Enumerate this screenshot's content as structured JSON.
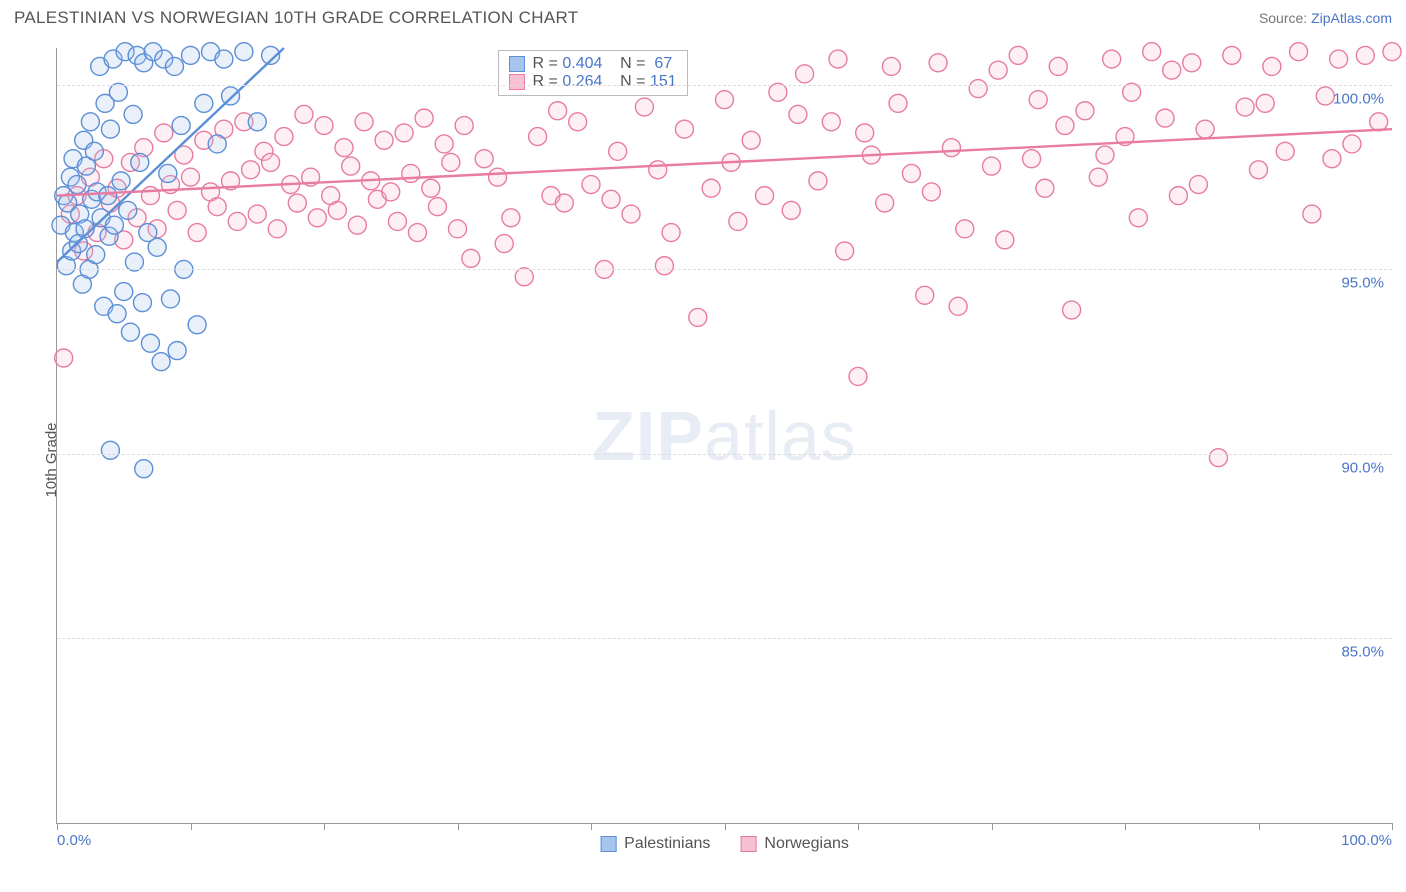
{
  "title": "PALESTINIAN VS NORWEGIAN 10TH GRADE CORRELATION CHART",
  "source_prefix": "Source: ",
  "source_link": "ZipAtlas.com",
  "y_axis_title": "10th Grade",
  "watermark_a": "ZIP",
  "watermark_b": "atlas",
  "chart": {
    "type": "scatter",
    "xlim": [
      0,
      100
    ],
    "ylim": [
      80,
      101
    ],
    "background_color": "#ffffff",
    "grid_color": "#dddddd",
    "axis_color": "#999999",
    "y_gridlines": [
      85,
      90,
      95,
      100
    ],
    "y_tick_labels": [
      "85.0%",
      "90.0%",
      "95.0%",
      "100.0%"
    ],
    "x_ticks": [
      0,
      10,
      20,
      30,
      40,
      50,
      60,
      70,
      80,
      90,
      100
    ],
    "x_tick_labels_shown": {
      "0": "0.0%",
      "100": "100.0%"
    },
    "marker_radius": 9,
    "marker_fill_opacity": 0.25,
    "marker_stroke_width": 1.4,
    "trendline_width": 2.4,
    "label_fontsize": 15,
    "label_color": "#4a76c7",
    "series": [
      {
        "key": "palestinians",
        "label": "Palestinians",
        "color_stroke": "#5b8fd6",
        "color_fill": "#a7c5ec",
        "R": "0.404",
        "N": "67",
        "trendline": {
          "x1": 0,
          "y1": 95.2,
          "x2": 17,
          "y2": 101.0
        },
        "points": [
          [
            0.3,
            96.2
          ],
          [
            0.5,
            97.0
          ],
          [
            0.7,
            95.1
          ],
          [
            0.8,
            96.8
          ],
          [
            1.0,
            97.5
          ],
          [
            1.1,
            95.5
          ],
          [
            1.2,
            98.0
          ],
          [
            1.3,
            96.0
          ],
          [
            1.5,
            97.3
          ],
          [
            1.6,
            95.7
          ],
          [
            1.7,
            96.5
          ],
          [
            1.9,
            94.6
          ],
          [
            2.0,
            98.5
          ],
          [
            2.1,
            96.1
          ],
          [
            2.2,
            97.8
          ],
          [
            2.4,
            95.0
          ],
          [
            2.5,
            99.0
          ],
          [
            2.6,
            96.9
          ],
          [
            2.8,
            98.2
          ],
          [
            2.9,
            95.4
          ],
          [
            3.0,
            97.1
          ],
          [
            3.2,
            100.5
          ],
          [
            3.3,
            96.4
          ],
          [
            3.5,
            94.0
          ],
          [
            3.6,
            99.5
          ],
          [
            3.8,
            97.0
          ],
          [
            3.9,
            95.9
          ],
          [
            4.0,
            98.8
          ],
          [
            4.2,
            100.7
          ],
          [
            4.3,
            96.2
          ],
          [
            4.5,
            93.8
          ],
          [
            4.6,
            99.8
          ],
          [
            4.8,
            97.4
          ],
          [
            5.0,
            94.4
          ],
          [
            5.1,
            100.9
          ],
          [
            5.3,
            96.6
          ],
          [
            5.5,
            93.3
          ],
          [
            5.7,
            99.2
          ],
          [
            5.8,
            95.2
          ],
          [
            6.0,
            100.8
          ],
          [
            6.2,
            97.9
          ],
          [
            6.4,
            94.1
          ],
          [
            6.5,
            100.6
          ],
          [
            6.8,
            96.0
          ],
          [
            7.0,
            93.0
          ],
          [
            7.2,
            100.9
          ],
          [
            7.5,
            95.6
          ],
          [
            7.8,
            92.5
          ],
          [
            8.0,
            100.7
          ],
          [
            8.3,
            97.6
          ],
          [
            8.5,
            94.2
          ],
          [
            8.8,
            100.5
          ],
          [
            9.0,
            92.8
          ],
          [
            9.3,
            98.9
          ],
          [
            9.5,
            95.0
          ],
          [
            10.0,
            100.8
          ],
          [
            10.5,
            93.5
          ],
          [
            11.0,
            99.5
          ],
          [
            11.5,
            100.9
          ],
          [
            12.0,
            98.4
          ],
          [
            12.5,
            100.7
          ],
          [
            13.0,
            99.7
          ],
          [
            14.0,
            100.9
          ],
          [
            15.0,
            99.0
          ],
          [
            16.0,
            100.8
          ],
          [
            4.0,
            90.1
          ],
          [
            6.5,
            89.6
          ]
        ]
      },
      {
        "key": "norwegians",
        "label": "Norwegians",
        "color_stroke": "#e87ba1",
        "color_fill": "#f7c0d3",
        "R": "0.264",
        "N": "151",
        "trendline": {
          "x1": 0,
          "y1": 97.0,
          "x2": 100,
          "y2": 98.8
        },
        "points": [
          [
            0.5,
            92.6
          ],
          [
            1.0,
            96.5
          ],
          [
            1.5,
            97.0
          ],
          [
            2.0,
            95.5
          ],
          [
            2.5,
            97.5
          ],
          [
            3.0,
            96.0
          ],
          [
            3.5,
            98.0
          ],
          [
            4.0,
            96.8
          ],
          [
            4.5,
            97.2
          ],
          [
            5.0,
            95.8
          ],
          [
            5.5,
            97.9
          ],
          [
            6.0,
            96.4
          ],
          [
            6.5,
            98.3
          ],
          [
            7.0,
            97.0
          ],
          [
            7.5,
            96.1
          ],
          [
            8.0,
            98.7
          ],
          [
            8.5,
            97.3
          ],
          [
            9.0,
            96.6
          ],
          [
            9.5,
            98.1
          ],
          [
            10.0,
            97.5
          ],
          [
            10.5,
            96.0
          ],
          [
            11.0,
            98.5
          ],
          [
            11.5,
            97.1
          ],
          [
            12.0,
            96.7
          ],
          [
            12.5,
            98.8
          ],
          [
            13.0,
            97.4
          ],
          [
            13.5,
            96.3
          ],
          [
            14.0,
            99.0
          ],
          [
            14.5,
            97.7
          ],
          [
            15.0,
            96.5
          ],
          [
            15.5,
            98.2
          ],
          [
            16.0,
            97.9
          ],
          [
            16.5,
            96.1
          ],
          [
            17.0,
            98.6
          ],
          [
            17.5,
            97.3
          ],
          [
            18.0,
            96.8
          ],
          [
            18.5,
            99.2
          ],
          [
            19.0,
            97.5
          ],
          [
            19.5,
            96.4
          ],
          [
            20.0,
            98.9
          ],
          [
            20.5,
            97.0
          ],
          [
            21.0,
            96.6
          ],
          [
            21.5,
            98.3
          ],
          [
            22.0,
            97.8
          ],
          [
            22.5,
            96.2
          ],
          [
            23.0,
            99.0
          ],
          [
            23.5,
            97.4
          ],
          [
            24.0,
            96.9
          ],
          [
            24.5,
            98.5
          ],
          [
            25.0,
            97.1
          ],
          [
            25.5,
            96.3
          ],
          [
            26.0,
            98.7
          ],
          [
            26.5,
            97.6
          ],
          [
            27.0,
            96.0
          ],
          [
            27.5,
            99.1
          ],
          [
            28.0,
            97.2
          ],
          [
            28.5,
            96.7
          ],
          [
            29.0,
            98.4
          ],
          [
            29.5,
            97.9
          ],
          [
            30.0,
            96.1
          ],
          [
            31.0,
            95.3
          ],
          [
            32.0,
            98.0
          ],
          [
            33.0,
            97.5
          ],
          [
            34.0,
            96.4
          ],
          [
            35.0,
            94.8
          ],
          [
            36.0,
            98.6
          ],
          [
            37.0,
            97.0
          ],
          [
            38.0,
            96.8
          ],
          [
            39.0,
            99.0
          ],
          [
            40.0,
            97.3
          ],
          [
            41.0,
            95.0
          ],
          [
            42.0,
            98.2
          ],
          [
            43.0,
            96.5
          ],
          [
            44.0,
            99.4
          ],
          [
            45.0,
            97.7
          ],
          [
            46.0,
            96.0
          ],
          [
            47.0,
            98.8
          ],
          [
            48.0,
            93.7
          ],
          [
            49.0,
            97.2
          ],
          [
            50.0,
            99.6
          ],
          [
            51.0,
            96.3
          ],
          [
            52.0,
            98.5
          ],
          [
            53.0,
            97.0
          ],
          [
            54.0,
            99.8
          ],
          [
            55.0,
            96.6
          ],
          [
            56.0,
            100.3
          ],
          [
            57.0,
            97.4
          ],
          [
            58.0,
            99.0
          ],
          [
            59.0,
            95.5
          ],
          [
            60.0,
            92.1
          ],
          [
            61.0,
            98.1
          ],
          [
            62.0,
            96.8
          ],
          [
            63.0,
            99.5
          ],
          [
            64.0,
            97.6
          ],
          [
            65.0,
            94.3
          ],
          [
            66.0,
            100.6
          ],
          [
            67.0,
            98.3
          ],
          [
            68.0,
            96.1
          ],
          [
            69.0,
            99.9
          ],
          [
            70.0,
            97.8
          ],
          [
            71.0,
            95.8
          ],
          [
            72.0,
            100.8
          ],
          [
            73.0,
            98.0
          ],
          [
            74.0,
            97.2
          ],
          [
            75.0,
            100.5
          ],
          [
            76.0,
            93.9
          ],
          [
            77.0,
            99.3
          ],
          [
            78.0,
            97.5
          ],
          [
            79.0,
            100.7
          ],
          [
            80.0,
            98.6
          ],
          [
            81.0,
            96.4
          ],
          [
            82.0,
            100.9
          ],
          [
            83.0,
            99.1
          ],
          [
            84.0,
            97.0
          ],
          [
            85.0,
            100.6
          ],
          [
            86.0,
            98.8
          ],
          [
            87.0,
            89.9
          ],
          [
            88.0,
            100.8
          ],
          [
            89.0,
            99.4
          ],
          [
            90.0,
            97.7
          ],
          [
            91.0,
            100.5
          ],
          [
            92.0,
            98.2
          ],
          [
            93.0,
            100.9
          ],
          [
            94.0,
            96.5
          ],
          [
            95.0,
            99.7
          ],
          [
            96.0,
            100.7
          ],
          [
            97.0,
            98.4
          ],
          [
            98.0,
            100.8
          ],
          [
            99.0,
            99.0
          ],
          [
            100.0,
            100.9
          ],
          [
            30.5,
            98.9
          ],
          [
            33.5,
            95.7
          ],
          [
            37.5,
            99.3
          ],
          [
            41.5,
            96.9
          ],
          [
            45.5,
            95.1
          ],
          [
            50.5,
            97.9
          ],
          [
            55.5,
            99.2
          ],
          [
            60.5,
            98.7
          ],
          [
            65.5,
            97.1
          ],
          [
            70.5,
            100.4
          ],
          [
            75.5,
            98.9
          ],
          [
            80.5,
            99.8
          ],
          [
            85.5,
            97.3
          ],
          [
            90.5,
            99.5
          ],
          [
            95.5,
            98.0
          ],
          [
            58.5,
            100.7
          ],
          [
            62.5,
            100.5
          ],
          [
            67.5,
            94.0
          ],
          [
            73.5,
            99.6
          ],
          [
            78.5,
            98.1
          ],
          [
            83.5,
            100.4
          ]
        ]
      }
    ]
  },
  "legend_box": {
    "R_label": "R =",
    "N_label": "N ="
  }
}
